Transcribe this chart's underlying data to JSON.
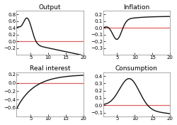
{
  "titles": [
    "Output",
    "Inflation",
    "Real interest",
    "Consumption"
  ],
  "xlim": [
    1,
    20
  ],
  "xticks": [
    5,
    10,
    15,
    20
  ],
  "subplots": [
    {
      "ylim": [
        -0.4,
        0.9
      ],
      "yticks": [
        -0.2,
        0,
        0.2,
        0.4,
        0.6,
        0.8
      ]
    },
    {
      "ylim": [
        -0.4,
        0.25
      ],
      "yticks": [
        -0.3,
        -0.2,
        -0.1,
        0,
        0.1,
        0.2
      ]
    },
    {
      "ylim": [
        -0.8,
        0.25
      ],
      "yticks": [
        -0.6,
        -0.4,
        -0.2,
        0,
        0.2
      ]
    },
    {
      "ylim": [
        -0.15,
        0.45
      ],
      "yticks": [
        -0.1,
        0,
        0.1,
        0.2,
        0.3,
        0.4
      ]
    }
  ],
  "line_color": "#111111",
  "hline_color": "#e06060",
  "hline_lw": 0.9,
  "line_lw": 1.0,
  "background_color": "#ffffff",
  "title_fontsize": 6.5,
  "tick_fontsize": 5.0
}
